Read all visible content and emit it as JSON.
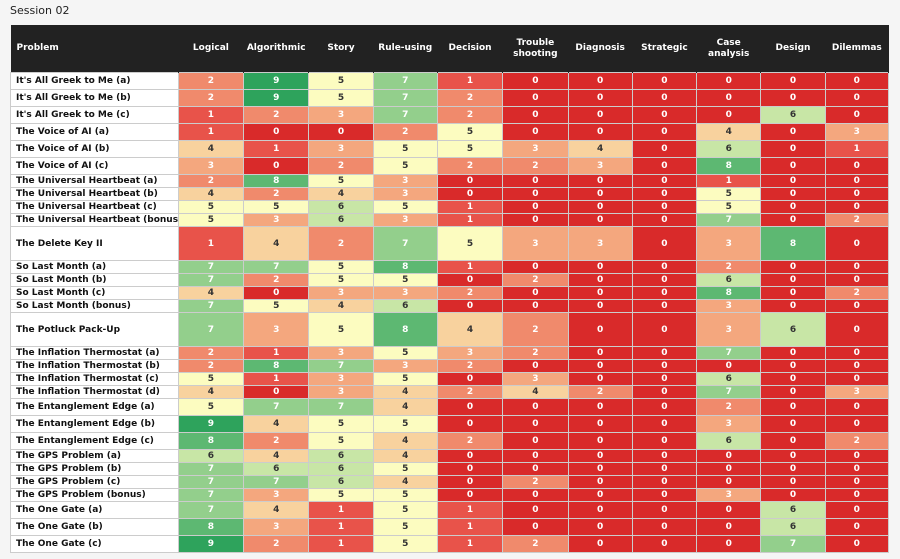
{
  "session_label": "Session 02",
  "columns": [
    "Problem",
    "Logical",
    "Algorithmic",
    "Story",
    "Rule-using",
    "Decision",
    "Trouble\nshooting",
    "Diagnosis",
    "Strategic",
    "Case\nanalysis",
    "Design",
    "Dilemmas"
  ],
  "palette": {
    "0": "#d92a2a",
    "1": "#e8534a",
    "2": "#f08a6c",
    "3": "#f4a77e",
    "4": "#f8d29e",
    "5": "#fcfcc0",
    "6": "#c8e6a6",
    "7": "#93cf8c",
    "8": "#5db872",
    "9": "#2ea35c"
  },
  "rows": [
    {
      "name": "It's All Greek to Me (a)",
      "h": 17,
      "scores": [
        2,
        9,
        5,
        7,
        1,
        0,
        0,
        0,
        0,
        0,
        0
      ]
    },
    {
      "name": "It's All Greek to Me (b)",
      "h": 17,
      "scores": [
        2,
        9,
        5,
        7,
        2,
        0,
        0,
        0,
        0,
        0,
        0
      ]
    },
    {
      "name": "It's All Greek to Me (c)",
      "h": 17,
      "scores": [
        1,
        2,
        3,
        7,
        2,
        0,
        0,
        0,
        0,
        6,
        0
      ]
    },
    {
      "name": "The Voice of AI (a)",
      "h": 17,
      "scores": [
        1,
        0,
        0,
        2,
        5,
        0,
        0,
        0,
        4,
        0,
        3
      ]
    },
    {
      "name": "The Voice of AI (b)",
      "h": 17,
      "scores": [
        4,
        1,
        3,
        5,
        5,
        3,
        4,
        0,
        6,
        0,
        1
      ]
    },
    {
      "name": "The Voice of AI (c)",
      "h": 17,
      "scores": [
        3,
        0,
        2,
        5,
        2,
        2,
        3,
        0,
        8,
        0,
        0
      ]
    },
    {
      "name": "The Universal Heartbeat (a)",
      "h": 13,
      "scores": [
        2,
        8,
        5,
        3,
        0,
        0,
        0,
        0,
        1,
        0,
        0
      ]
    },
    {
      "name": "The Universal Heartbeat (b)",
      "h": 13,
      "scores": [
        4,
        2,
        4,
        3,
        0,
        0,
        0,
        0,
        5,
        0,
        0
      ]
    },
    {
      "name": "The Universal Heartbeat (c)",
      "h": 13,
      "scores": [
        5,
        5,
        6,
        5,
        1,
        0,
        0,
        0,
        5,
        0,
        0
      ]
    },
    {
      "name": "The Universal Heartbeat (bonus)",
      "h": 13,
      "scores": [
        5,
        3,
        6,
        3,
        1,
        0,
        0,
        0,
        7,
        0,
        2
      ]
    },
    {
      "name": "The Delete Key II",
      "h": 34,
      "scores": [
        1,
        4,
        2,
        7,
        5,
        3,
        3,
        0,
        3,
        8,
        0
      ]
    },
    {
      "name": "So Last Month (a)",
      "h": 13,
      "scores": [
        7,
        7,
        5,
        8,
        1,
        0,
        0,
        0,
        2,
        0,
        0
      ]
    },
    {
      "name": "So Last Month (b)",
      "h": 13,
      "scores": [
        7,
        2,
        5,
        5,
        0,
        2,
        0,
        0,
        6,
        0,
        0
      ]
    },
    {
      "name": "So Last Month (c)",
      "h": 13,
      "scores": [
        4,
        0,
        3,
        3,
        2,
        0,
        0,
        0,
        8,
        0,
        2
      ]
    },
    {
      "name": "So Last Month (bonus)",
      "h": 13,
      "scores": [
        7,
        5,
        4,
        6,
        0,
        0,
        0,
        0,
        3,
        0,
        0
      ]
    },
    {
      "name": "The Potluck Pack-Up",
      "h": 34,
      "scores": [
        7,
        3,
        5,
        8,
        4,
        2,
        0,
        0,
        3,
        6,
        0
      ]
    },
    {
      "name": "The Inflation Thermostat (a)",
      "h": 13,
      "scores": [
        2,
        1,
        3,
        5,
        3,
        2,
        0,
        0,
        7,
        0,
        0
      ]
    },
    {
      "name": "The Inflation Thermostat (b)",
      "h": 13,
      "scores": [
        2,
        8,
        7,
        3,
        2,
        0,
        0,
        0,
        0,
        0,
        0
      ]
    },
    {
      "name": "The Inflation Thermostat (c)",
      "h": 13,
      "scores": [
        5,
        1,
        3,
        5,
        0,
        3,
        0,
        0,
        6,
        0,
        0
      ]
    },
    {
      "name": "The Inflation Thermostat (d)",
      "h": 13,
      "scores": [
        4,
        0,
        3,
        4,
        2,
        4,
        2,
        0,
        7,
        0,
        3
      ]
    },
    {
      "name": "The Entanglement Edge (a)",
      "h": 17,
      "scores": [
        5,
        7,
        7,
        4,
        0,
        0,
        0,
        0,
        2,
        0,
        0
      ]
    },
    {
      "name": "The Entanglement Edge (b)",
      "h": 17,
      "scores": [
        9,
        4,
        5,
        5,
        0,
        0,
        0,
        0,
        3,
        0,
        0
      ]
    },
    {
      "name": "The Entanglement Edge (c)",
      "h": 17,
      "scores": [
        8,
        2,
        5,
        4,
        2,
        0,
        0,
        0,
        6,
        0,
        2
      ]
    },
    {
      "name": "The GPS Problem (a)",
      "h": 13,
      "scores": [
        6,
        4,
        6,
        4,
        0,
        0,
        0,
        0,
        0,
        0,
        0
      ]
    },
    {
      "name": "The GPS Problem (b)",
      "h": 13,
      "scores": [
        7,
        6,
        6,
        5,
        0,
        0,
        0,
        0,
        0,
        0,
        0
      ]
    },
    {
      "name": "The GPS Problem (c)",
      "h": 13,
      "scores": [
        7,
        7,
        6,
        4,
        0,
        2,
        0,
        0,
        0,
        0,
        0
      ]
    },
    {
      "name": "The GPS Problem (bonus)",
      "h": 13,
      "scores": [
        7,
        3,
        5,
        5,
        0,
        0,
        0,
        0,
        3,
        0,
        0
      ]
    },
    {
      "name": "The One Gate (a)",
      "h": 17,
      "scores": [
        7,
        4,
        1,
        5,
        1,
        0,
        0,
        0,
        0,
        6,
        0
      ]
    },
    {
      "name": "The One Gate (b)",
      "h": 17,
      "scores": [
        8,
        3,
        1,
        5,
        1,
        0,
        0,
        0,
        0,
        6,
        0
      ]
    },
    {
      "name": "The One Gate (c)",
      "h": 17,
      "scores": [
        9,
        2,
        1,
        5,
        1,
        2,
        0,
        0,
        0,
        7,
        0
      ]
    }
  ]
}
